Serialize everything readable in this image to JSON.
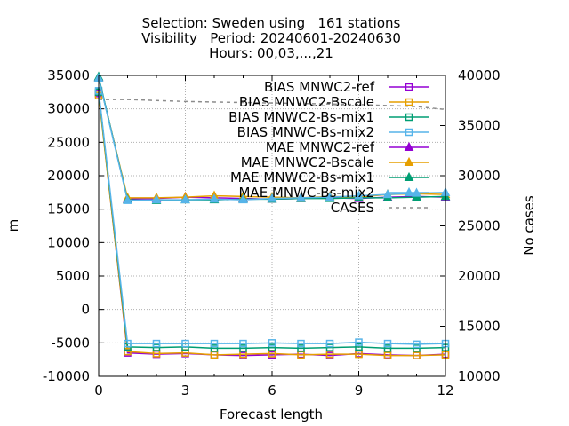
{
  "chart_data": {
    "type": "line",
    "title_lines": [
      "Selection: Sweden using   161 stations",
      "Visibility   Period: 20240601-20240630",
      "Hours: 00,03,...,21"
    ],
    "xlabel": "Forecast length",
    "ylabel": "m",
    "y2label": "No cases",
    "xlim": [
      0,
      12
    ],
    "ylim": [
      -10000,
      35000
    ],
    "y2lim": [
      10000,
      40000
    ],
    "xticks": [
      0,
      3,
      6,
      9,
      12
    ],
    "yticks": [
      -10000,
      -5000,
      0,
      5000,
      10000,
      15000,
      20000,
      25000,
      30000,
      35000
    ],
    "y2ticks": [
      10000,
      15000,
      20000,
      25000,
      30000,
      35000,
      40000
    ],
    "grid": true,
    "legend_position": "top-right",
    "x": [
      0,
      1,
      2,
      3,
      4,
      5,
      6,
      7,
      8,
      9,
      10,
      11,
      12
    ],
    "series": [
      {
        "name": "BIAS MNWC2-ref",
        "color": "#9400d3",
        "marker": "square-open",
        "axis": "y1",
        "values": [
          32300,
          -6500,
          -6700,
          -6600,
          -6800,
          -6900,
          -6800,
          -6700,
          -6900,
          -6600,
          -6800,
          -6900,
          -6700
        ]
      },
      {
        "name": "BIAS MNWC2-Bscale",
        "color": "#e69f00",
        "marker": "square-open",
        "axis": "y1",
        "values": [
          32000,
          -6300,
          -6600,
          -6500,
          -6800,
          -6700,
          -6600,
          -6800,
          -6700,
          -6700,
          -6900,
          -6900,
          -6800
        ]
      },
      {
        "name": "BIAS MNWC2-Bs-mix1",
        "color": "#009e73",
        "marker": "square-open",
        "axis": "y1",
        "values": [
          32500,
          -5600,
          -5700,
          -5600,
          -5800,
          -5800,
          -5700,
          -5800,
          -5700,
          -5600,
          -5800,
          -5800,
          -5700
        ]
      },
      {
        "name": "BIAS MNWC-Bs-mix2",
        "color": "#56b4e9",
        "marker": "square-open",
        "axis": "y1",
        "values": [
          32700,
          -5100,
          -5100,
          -5100,
          -5100,
          -5100,
          -5000,
          -5100,
          -5100,
          -4900,
          -5100,
          -5200,
          -5100
        ]
      },
      {
        "name": "MAE MNWC2-ref",
        "color": "#9400d3",
        "marker": "triangle-filled",
        "axis": "y1",
        "values": [
          34700,
          16500,
          16600,
          16800,
          16700,
          16600,
          16500,
          16600,
          16700,
          16600,
          16800,
          16900,
          16800
        ]
      },
      {
        "name": "MAE MNWC2-Bscale",
        "color": "#e69f00",
        "marker": "triangle-filled",
        "axis": "y1",
        "values": [
          34600,
          16700,
          16700,
          16800,
          17000,
          16900,
          16800,
          16700,
          16900,
          16800,
          17200,
          17300,
          17200
        ]
      },
      {
        "name": "MAE MNWC2-Bs-mix1",
        "color": "#009e73",
        "marker": "triangle-filled",
        "axis": "y1",
        "values": [
          34800,
          16400,
          16300,
          16400,
          16400,
          16500,
          16500,
          16600,
          16600,
          16700,
          16700,
          16800,
          16900
        ]
      },
      {
        "name": "MAE MNWC-Bs-mix2",
        "color": "#56b4e9",
        "marker": "triangle-filled",
        "axis": "y1",
        "values": [
          34600,
          16300,
          16400,
          16400,
          16500,
          16400,
          16600,
          16700,
          16800,
          17000,
          17200,
          17400,
          17500
        ]
      },
      {
        "name": "CASES",
        "color": "#8c8c8c",
        "marker": "none",
        "dash": true,
        "axis": "y2",
        "values": [
          37600,
          37600,
          37500,
          37400,
          37350,
          37300,
          37250,
          37200,
          37150,
          37100,
          37000,
          36900,
          36600
        ]
      }
    ]
  }
}
